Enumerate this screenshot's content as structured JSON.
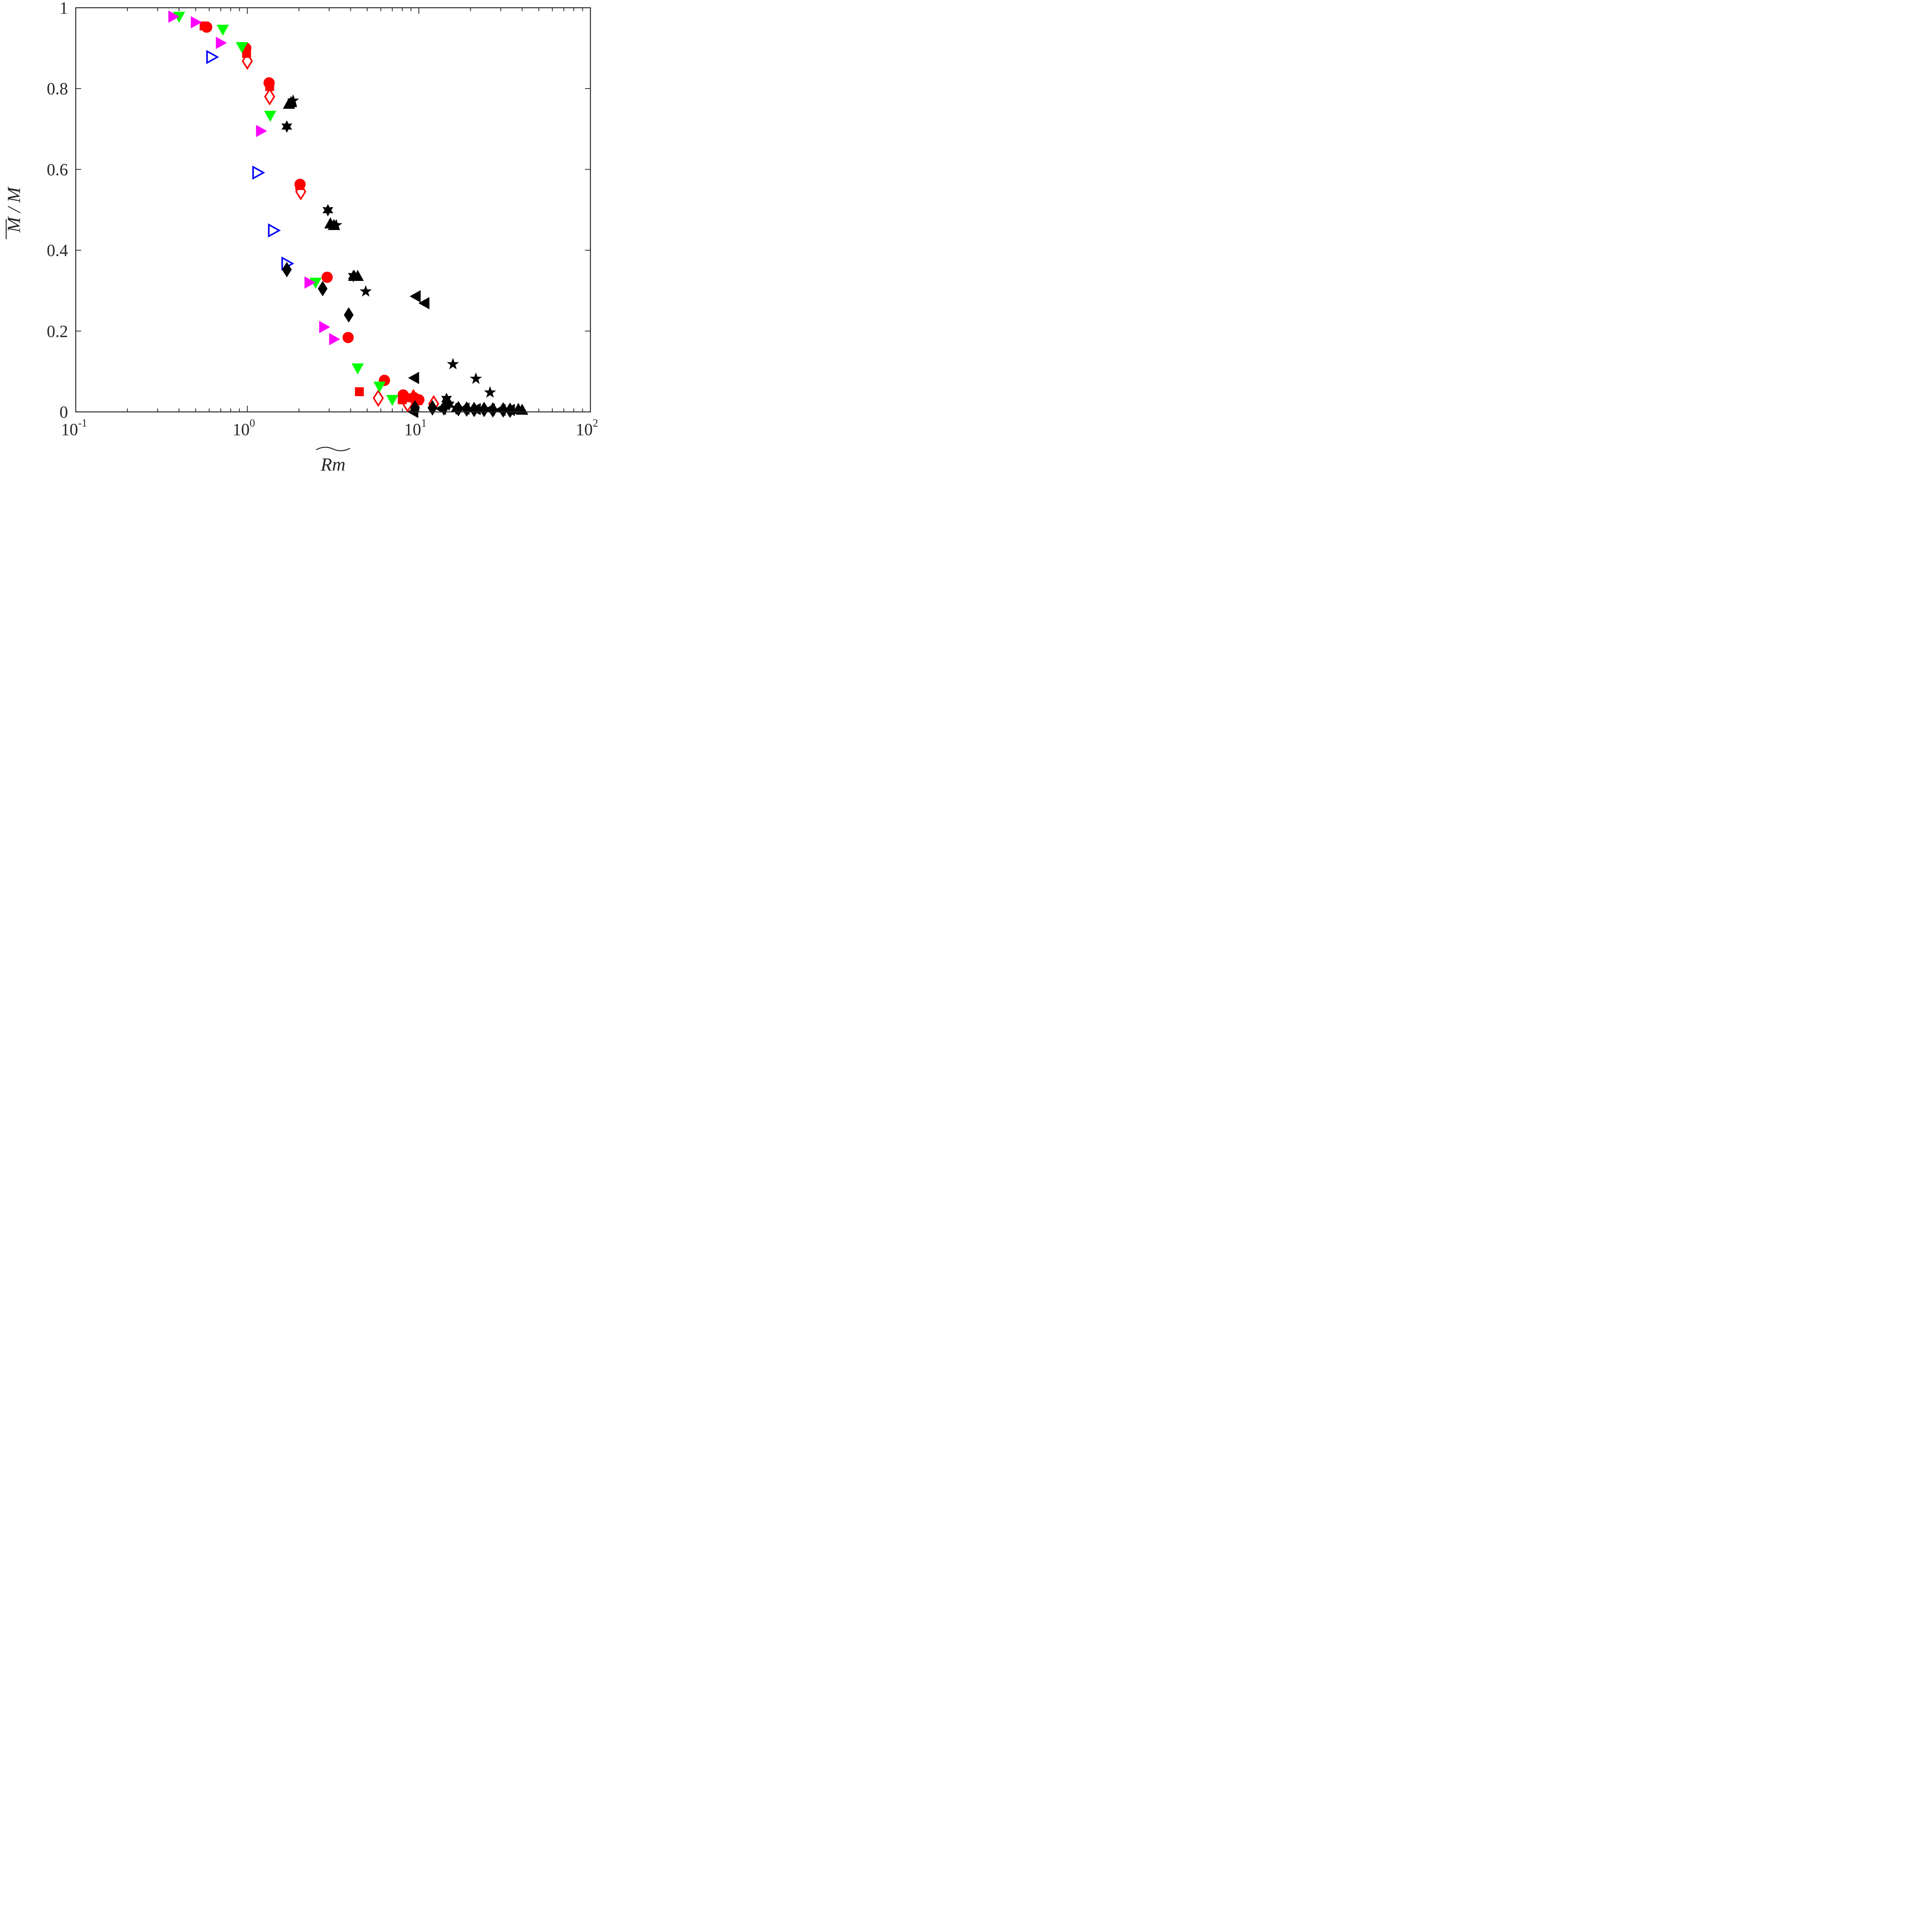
{
  "chart_data": {
    "type": "scatter",
    "x_scale": "log",
    "xlim": [
      0.1,
      100
    ],
    "ylim": [
      0,
      1
    ],
    "grid": false,
    "legend": "none",
    "xlabel": "Rm",
    "ylabel": "M / M",
    "x_ticks": [
      {
        "base": "10",
        "exp": "-1"
      },
      {
        "base": "10",
        "exp": "0"
      },
      {
        "base": "10",
        "exp": "1"
      },
      {
        "base": "10",
        "exp": "2"
      }
    ],
    "y_ticks": [
      "0",
      "0.2",
      "0.4",
      "0.6",
      "0.8",
      "1"
    ],
    "series": [
      {
        "marker": "circle",
        "color": "#ff0000",
        "filled": true,
        "x": [
          0.58,
          0.98,
          1.34,
          2.03,
          2.92,
          3.87,
          6.3,
          8.1,
          9.4,
          10.0
        ],
        "y": [
          0.952,
          0.9,
          0.814,
          0.563,
          0.333,
          0.184,
          0.078,
          0.042,
          0.035,
          0.03
        ]
      },
      {
        "marker": "square",
        "color": "#ff0000",
        "filled": true,
        "x": [
          0.56,
          0.99,
          1.35,
          2.02,
          4.5,
          8.0,
          8.6,
          9.9
        ],
        "y": [
          0.955,
          0.887,
          0.805,
          0.56,
          0.05,
          0.03,
          0.035,
          0.028
        ]
      },
      {
        "marker": "diamond",
        "color": "#ff0000",
        "filled": false,
        "x": [
          1.0,
          1.35,
          2.05,
          5.8,
          8.6,
          9.3,
          12.2
        ],
        "y": [
          0.868,
          0.78,
          0.545,
          0.034,
          0.02,
          0.035,
          0.02
        ]
      },
      {
        "marker": "triangle-down",
        "color": "#00ff00",
        "filled": true,
        "x": [
          0.4,
          0.72,
          0.93,
          1.36,
          2.5,
          4.4,
          5.9,
          7.0
        ],
        "y": [
          0.978,
          0.946,
          0.903,
          0.733,
          0.32,
          0.108,
          0.063,
          0.03
        ]
      },
      {
        "marker": "triangle-right",
        "color": "#ff00ff",
        "filled": true,
        "x": [
          0.37,
          0.5,
          0.7,
          1.2,
          2.3,
          2.8,
          3.2
        ],
        "y": [
          0.978,
          0.964,
          0.913,
          0.695,
          0.32,
          0.21,
          0.18
        ]
      },
      {
        "marker": "triangle-right",
        "color": "#0000ff",
        "filled": false,
        "x": [
          0.62,
          1.15,
          1.42,
          1.7
        ],
        "y": [
          0.878,
          0.592,
          0.449,
          0.367
        ]
      },
      {
        "marker": "diamond",
        "color": "#000000",
        "filled": true,
        "x": [
          1.7,
          2.75,
          3.9,
          9.5,
          12.0,
          14.0,
          17.0,
          19.0,
          21.0,
          24.0,
          27.0,
          31.0,
          34.0
        ],
        "y": [
          0.352,
          0.305,
          0.24,
          0.01,
          0.01,
          0.01,
          0.008,
          0.007,
          0.006,
          0.006,
          0.005,
          0.005,
          0.004
        ]
      },
      {
        "marker": "triangle-up",
        "color": "#000000",
        "filled": true,
        "x": [
          1.75,
          1.8,
          3.05,
          3.2,
          4.2,
          4.4,
          38.0,
          40.0
        ],
        "y": [
          0.762,
          0.766,
          0.466,
          0.462,
          0.336,
          0.336,
          0.007,
          0.005
        ]
      },
      {
        "marker": "hexagram",
        "color": "#000000",
        "filled": true,
        "x": [
          1.7,
          2.95,
          4.15,
          14.5,
          15.0,
          16.5
        ],
        "y": [
          0.706,
          0.499,
          0.336,
          0.032,
          0.018,
          0.008
        ]
      },
      {
        "marker": "pentagram",
        "color": "#000000",
        "filled": true,
        "x": [
          1.85,
          3.3,
          4.9,
          15.8,
          21.5,
          26.0
        ],
        "y": [
          0.77,
          0.462,
          0.298,
          0.118,
          0.082,
          0.048
        ]
      },
      {
        "marker": "triangle-left",
        "color": "#000000",
        "filled": true,
        "x": [
          9.6,
          10.8,
          9.4,
          9.3,
          13.5,
          18.5,
          21.5,
          26.0,
          30.0,
          34.0
        ],
        "y": [
          0.286,
          0.269,
          0.084,
          0.0,
          0.008,
          0.008,
          0.007,
          0.006,
          0.005,
          0.005
        ]
      }
    ]
  }
}
